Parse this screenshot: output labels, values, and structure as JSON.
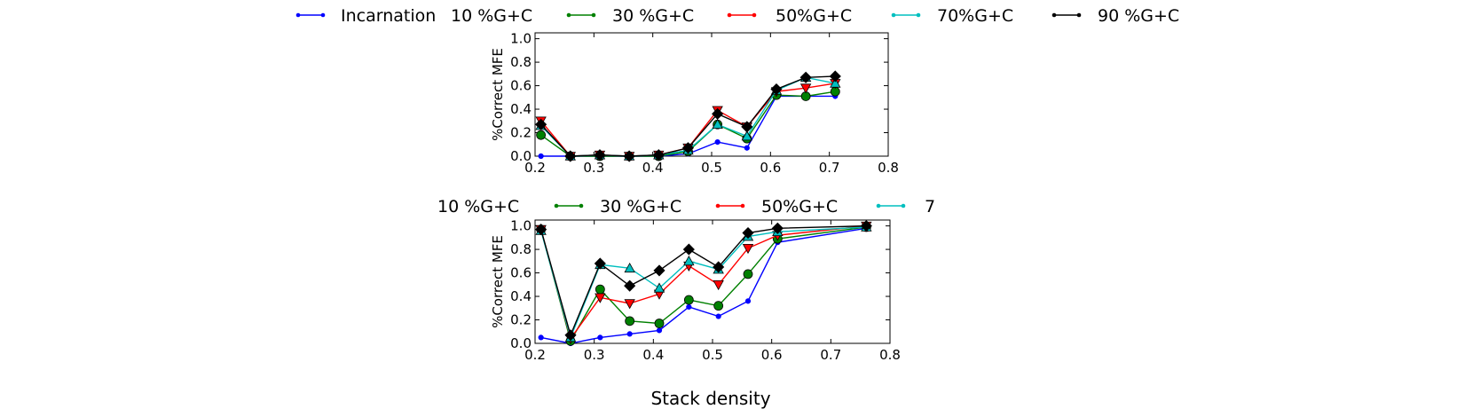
{
  "legend_top": {
    "entries": [
      {
        "label": "Incarnation",
        "color": "#0000ff"
      },
      {
        "label": "10 %G+C",
        "color": null
      },
      {
        "label": "30 %G+C",
        "color": "#008000"
      },
      {
        "label": "50%G+C",
        "color": "#ff0000"
      },
      {
        "label": "70%G+C",
        "color": "#00bfbf"
      },
      {
        "label": "90 %G+C",
        "color": "#000000"
      }
    ]
  },
  "legend_bottom": {
    "entries": [
      {
        "label": "10 %G+C",
        "color": null
      },
      {
        "label": "30 %G+C",
        "color": "#008000"
      },
      {
        "label": "50%G+C",
        "color": "#ff0000"
      },
      {
        "label": "7",
        "color": "#00bfbf"
      }
    ]
  },
  "xlabel": "Stack density",
  "chart_data": [
    {
      "type": "line",
      "ylabel": "%Correct MFE",
      "xlim": [
        0.2,
        0.8
      ],
      "ylim": [
        0.0,
        1.05
      ],
      "xticks": [
        "0.2",
        "0.3",
        "0.4",
        "0.5",
        "0.6",
        "0.7",
        "0.8"
      ],
      "yticks": [
        "0.0",
        "0.2",
        "0.4",
        "0.6",
        "0.8",
        "1.0"
      ],
      "grid": false,
      "series": [
        {
          "color": "#0000ff",
          "marker": "dot",
          "x": [
            0.21,
            0.26,
            0.31,
            0.36,
            0.41,
            0.46,
            0.51,
            0.56,
            0.61,
            0.66,
            0.71
          ],
          "y": [
            0.0,
            0.0,
            0.0,
            0.0,
            0.0,
            0.02,
            0.12,
            0.07,
            0.51,
            0.51,
            0.51
          ]
        },
        {
          "color": "#008000",
          "marker": "circle",
          "x": [
            0.21,
            0.26,
            0.31,
            0.36,
            0.41,
            0.46,
            0.51,
            0.56,
            0.61,
            0.66,
            0.71
          ],
          "y": [
            0.18,
            0.0,
            0.0,
            0.0,
            0.0,
            0.04,
            0.27,
            0.15,
            0.52,
            0.51,
            0.55
          ]
        },
        {
          "color": "#ff0000",
          "marker": "triangle-down",
          "x": [
            0.21,
            0.26,
            0.31,
            0.36,
            0.41,
            0.46,
            0.51,
            0.56,
            0.61,
            0.66,
            0.71
          ],
          "y": [
            0.3,
            0.0,
            0.01,
            0.0,
            0.01,
            0.07,
            0.39,
            0.25,
            0.55,
            0.58,
            0.62
          ]
        },
        {
          "color": "#00bfbf",
          "marker": "triangle-up",
          "x": [
            0.21,
            0.26,
            0.31,
            0.36,
            0.41,
            0.46,
            0.51,
            0.56,
            0.61,
            0.66,
            0.71
          ],
          "y": [
            0.26,
            0.0,
            0.01,
            0.0,
            0.01,
            0.05,
            0.27,
            0.17,
            0.56,
            0.67,
            0.62
          ]
        },
        {
          "color": "#000000",
          "marker": "diamond",
          "x": [
            0.21,
            0.26,
            0.31,
            0.36,
            0.41,
            0.46,
            0.51,
            0.56,
            0.61,
            0.66,
            0.71
          ],
          "y": [
            0.27,
            0.0,
            0.01,
            0.0,
            0.01,
            0.07,
            0.36,
            0.25,
            0.57,
            0.67,
            0.68
          ]
        }
      ]
    },
    {
      "type": "line",
      "ylabel": "%Correct MFE",
      "xlabel": "Stack density",
      "xlim": [
        0.2,
        0.8
      ],
      "ylim": [
        0.0,
        1.05
      ],
      "xticks": [
        "0.2",
        "0.3",
        "0.4",
        "0.5",
        "0.6",
        "0.7",
        "0.8"
      ],
      "yticks": [
        "0.0",
        "0.2",
        "0.4",
        "0.6",
        "0.8",
        "1.0"
      ],
      "grid": false,
      "series": [
        {
          "color": "#0000ff",
          "marker": "dot",
          "x": [
            0.21,
            0.26,
            0.31,
            0.36,
            0.41,
            0.46,
            0.51,
            0.56,
            0.61,
            0.76
          ],
          "y": [
            0.05,
            0.0,
            0.05,
            0.08,
            0.11,
            0.31,
            0.23,
            0.36,
            0.86,
            0.98
          ]
        },
        {
          "color": "#008000",
          "marker": "circle",
          "x": [
            0.21,
            0.26,
            0.31,
            0.36,
            0.41,
            0.46,
            0.51,
            0.56,
            0.61,
            0.76
          ],
          "y": [
            0.97,
            0.02,
            0.46,
            0.19,
            0.17,
            0.37,
            0.32,
            0.59,
            0.89,
            0.99
          ]
        },
        {
          "color": "#ff0000",
          "marker": "triangle-down",
          "x": [
            0.21,
            0.26,
            0.31,
            0.36,
            0.41,
            0.46,
            0.51,
            0.56,
            0.61,
            0.76
          ],
          "y": [
            0.97,
            0.04,
            0.39,
            0.34,
            0.42,
            0.66,
            0.5,
            0.81,
            0.92,
            1.0
          ]
        },
        {
          "color": "#00bfbf",
          "marker": "triangle-up",
          "x": [
            0.21,
            0.26,
            0.31,
            0.36,
            0.41,
            0.46,
            0.51,
            0.56,
            0.61,
            0.76
          ],
          "y": [
            0.96,
            0.05,
            0.67,
            0.64,
            0.47,
            0.7,
            0.63,
            0.91,
            0.95,
            0.99
          ]
        },
        {
          "color": "#000000",
          "marker": "diamond",
          "x": [
            0.21,
            0.26,
            0.31,
            0.36,
            0.41,
            0.46,
            0.51,
            0.56,
            0.61,
            0.76
          ],
          "y": [
            0.97,
            0.07,
            0.68,
            0.49,
            0.62,
            0.8,
            0.65,
            0.94,
            0.98,
            1.0
          ]
        }
      ]
    }
  ]
}
